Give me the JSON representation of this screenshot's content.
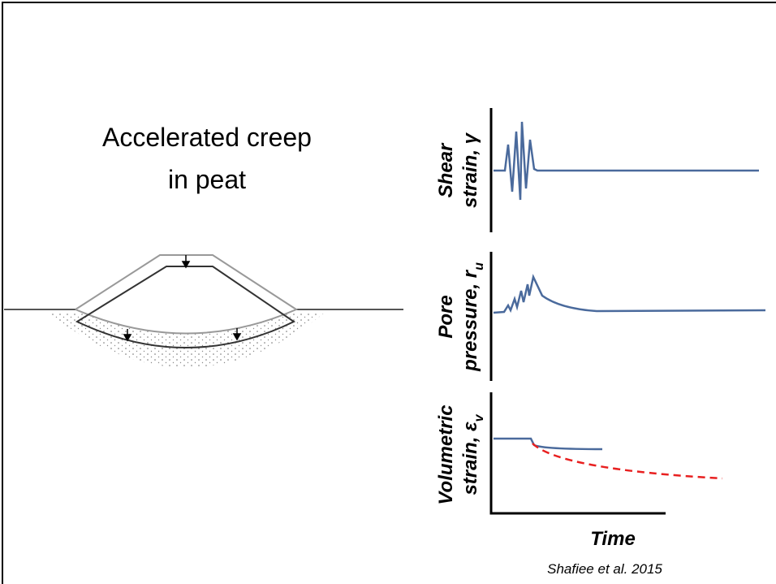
{
  "title": {
    "line1": "Accelerated creep",
    "line2": "in peat"
  },
  "panels": [
    {
      "label1": "Shear",
      "label2": "strain, γ"
    },
    {
      "label1": "Pore",
      "label2": "pressure, r",
      "label2_sub": "u"
    },
    {
      "label1": "Volumetric",
      "label2": "strain, ε",
      "label2_sub": "v"
    }
  ],
  "x_label": "Time",
  "citation": "Shafiee et al. 2015"
}
